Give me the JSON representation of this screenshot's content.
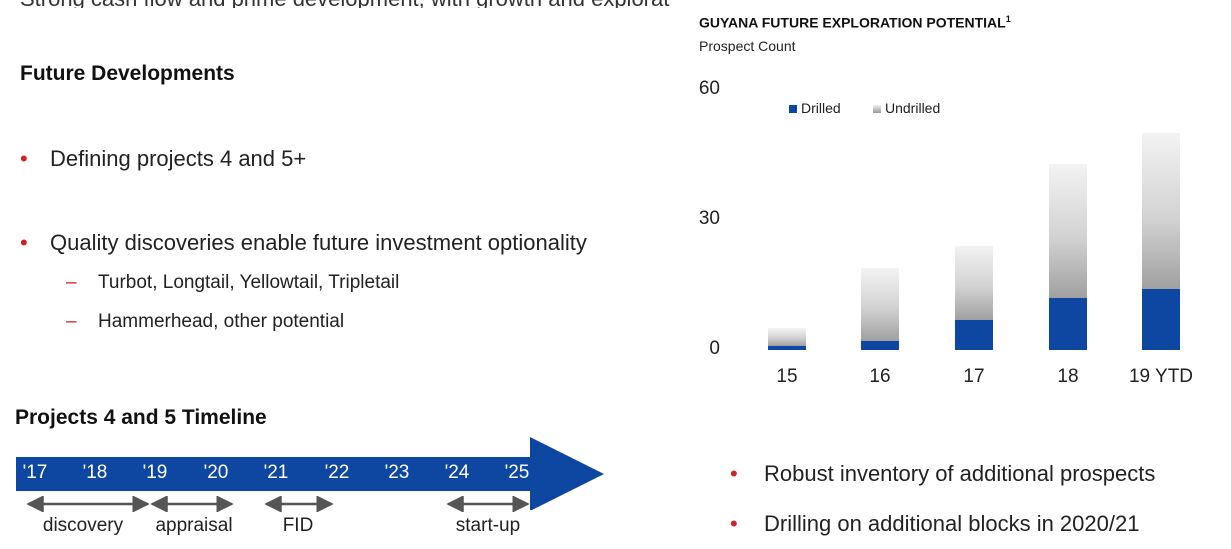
{
  "top_cut_text": "Strong cash flow and prime development, with growth and exploration upside",
  "left": {
    "future_heading": "Future Developments",
    "bullets": [
      "Defining projects 4 and 5+",
      "Quality discoveries enable future investment optionality"
    ],
    "sub_bullets": [
      "Turbot, Longtail, Yellowtail, Tripletail",
      "Hammerhead, other potential"
    ],
    "timeline_heading": "Projects 4 and 5 Timeline",
    "timeline_years": [
      "'17",
      "'18",
      "'19",
      "'20",
      "'21",
      "'22",
      "'23",
      "'24",
      "'25"
    ],
    "timeline_phases": [
      "discovery",
      "appraisal",
      "FID",
      "start-up"
    ]
  },
  "chart_data": {
    "type": "bar",
    "stacked": true,
    "title": "GUYANA FUTURE EXPLORATION POTENTIAL",
    "title_footnote": "1",
    "ylabel": "Prospect Count",
    "categories": [
      "15",
      "16",
      "17",
      "18",
      "19 YTD"
    ],
    "series": [
      {
        "name": "Drilled",
        "values": [
          1,
          2,
          7,
          12,
          14
        ],
        "color": "#0d47a1"
      },
      {
        "name": "Undrilled",
        "values": [
          4,
          17,
          17,
          31,
          36
        ],
        "color": "#b0b0b0"
      }
    ],
    "yticks": [
      "0",
      "30",
      "60"
    ],
    "ylim": [
      0,
      60
    ],
    "grid": false,
    "legend_position": "top"
  },
  "right_bullets": [
    "Robust inventory of additional prospects",
    "Drilling on additional blocks in 2020/21"
  ],
  "colors": {
    "accent_red": "#d4202b",
    "timeline_blue": "#0d47a1",
    "arrow_gray": "#555555"
  }
}
